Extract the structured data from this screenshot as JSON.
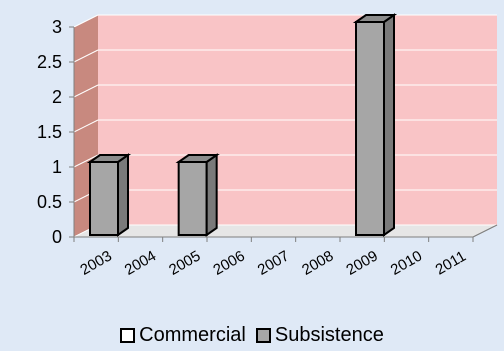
{
  "chart_data": {
    "type": "bar",
    "categories": [
      "2003",
      "2004",
      "2005",
      "2006",
      "2007",
      "2008",
      "2009",
      "2010",
      "2011"
    ],
    "series": [
      {
        "name": "Commercial",
        "values": [
          0,
          0,
          0,
          0,
          0,
          0,
          0,
          0,
          0
        ],
        "color": "#ffffff"
      },
      {
        "name": "Subsistence",
        "values": [
          1,
          0,
          1,
          0,
          0,
          0,
          3,
          0,
          0
        ],
        "color": "#a6a6a6"
      }
    ],
    "yticks": [
      "0",
      "0.5",
      "1",
      "1.5",
      "2",
      "2.5",
      "3"
    ],
    "ylim": [
      0,
      3
    ],
    "grid": true,
    "legend_position": "bottom",
    "plot_background": "#f9c4c6",
    "wall_side_color": "#c8897f"
  }
}
